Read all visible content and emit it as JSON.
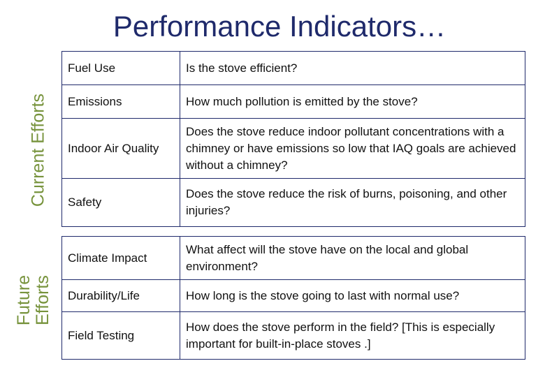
{
  "title": "Performance Indicators…",
  "groups": [
    {
      "label": "Current Efforts",
      "rows": [
        [
          "Fuel Use",
          "Is the stove efficient?"
        ],
        [
          "Emissions",
          "How much pollution is emitted by the stove?"
        ],
        [
          "Indoor Air Quality",
          "Does the stove reduce indoor pollutant concentrations with a chimney or have emissions so low that IAQ goals are achieved without a chimney?"
        ],
        [
          "Safety",
          "Does the stove reduce the risk of burns, poisoning, and other injuries?"
        ]
      ]
    },
    {
      "label": "Future Efforts",
      "rows": [
        [
          "Climate Impact",
          "What affect will the stove have on the local and global environment?"
        ],
        [
          "Durability/Life",
          "How long is the stove going to last with normal use?"
        ],
        [
          "Field Testing",
          "How does the stove perform in the field?  [This is especially important for built-in-place stoves .]"
        ]
      ]
    }
  ]
}
